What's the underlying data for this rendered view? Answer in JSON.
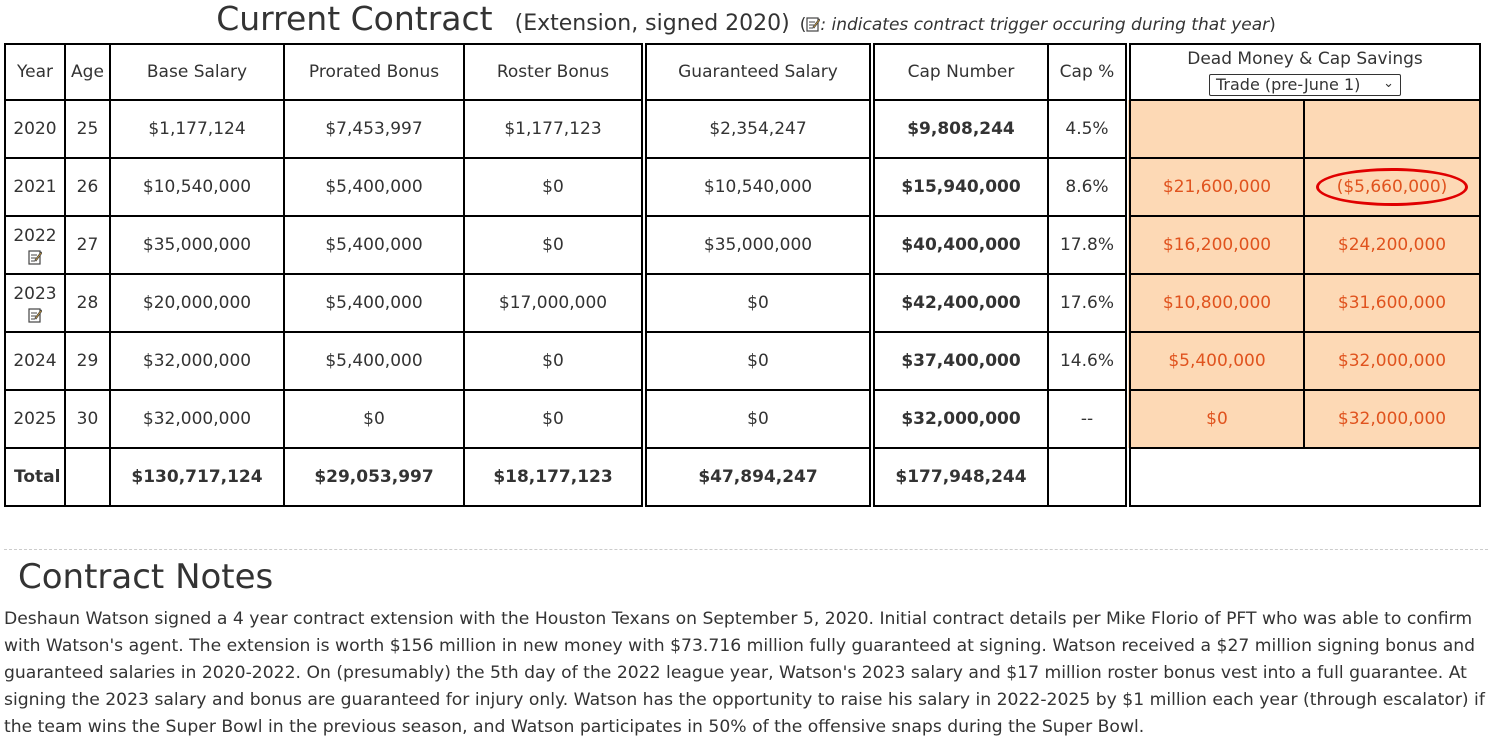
{
  "header": {
    "title": "Current Contract",
    "subtitle": "(Extension, signed 2020)",
    "note_open": "(",
    "note_text": ": indicates contract trigger occuring during that year",
    "note_close": ")"
  },
  "table": {
    "columns": [
      "Year",
      "Age",
      "Base Salary",
      "Prorated Bonus",
      "Roster Bonus",
      "Guaranteed Salary",
      "Cap Number",
      "Cap %"
    ],
    "dead_money_header": "Dead Money & Cap Savings",
    "dead_money_select": "Trade (pre-June 1)",
    "rows": [
      {
        "year": "2020",
        "trigger": false,
        "age": "25",
        "base": "$1,177,124",
        "prorated": "$7,453,997",
        "roster": "$1,177,123",
        "guaranteed": "$2,354,247",
        "cap": "$9,808,244",
        "cap_pct": "4.5%",
        "dead": "",
        "savings": ""
      },
      {
        "year": "2021",
        "trigger": false,
        "age": "26",
        "base": "$10,540,000",
        "prorated": "$5,400,000",
        "roster": "$0",
        "guaranteed": "$10,540,000",
        "cap": "$15,940,000",
        "cap_pct": "8.6%",
        "dead": "$21,600,000",
        "savings": "($5,660,000)"
      },
      {
        "year": "2022",
        "trigger": true,
        "age": "27",
        "base": "$35,000,000",
        "prorated": "$5,400,000",
        "roster": "$0",
        "guaranteed": "$35,000,000",
        "cap": "$40,400,000",
        "cap_pct": "17.8%",
        "dead": "$16,200,000",
        "savings": "$24,200,000"
      },
      {
        "year": "2023",
        "trigger": true,
        "age": "28",
        "base": "$20,000,000",
        "prorated": "$5,400,000",
        "roster": "$17,000,000",
        "guaranteed": "$0",
        "cap": "$42,400,000",
        "cap_pct": "17.6%",
        "dead": "$10,800,000",
        "savings": "$31,600,000"
      },
      {
        "year": "2024",
        "trigger": false,
        "age": "29",
        "base": "$32,000,000",
        "prorated": "$5,400,000",
        "roster": "$0",
        "guaranteed": "$0",
        "cap": "$37,400,000",
        "cap_pct": "14.6%",
        "dead": "$5,400,000",
        "savings": "$32,000,000"
      },
      {
        "year": "2025",
        "trigger": false,
        "age": "30",
        "base": "$32,000,000",
        "prorated": "$0",
        "roster": "$0",
        "guaranteed": "$0",
        "cap": "$32,000,000",
        "cap_pct": "--",
        "dead": "$0",
        "savings": "$32,000,000"
      }
    ],
    "total": {
      "label": "Total",
      "base": "$130,717,124",
      "prorated": "$29,053,997",
      "roster": "$18,177,123",
      "guaranteed": "$47,894,247",
      "cap": "$177,948,244"
    }
  },
  "notes": {
    "title": "Contract Notes",
    "body": "Deshaun Watson signed a 4 year contract extension with the Houston Texans on September 5, 2020.  Initial contract details per Mike Florio of PFT who was able to confirm with Watson's agent. The extension is worth $156 million in new money with $73.716 million fully guaranteed at signing.  Watson received  a $27 million signing bonus and guaranteed salaries in 2020-2022.  On (presumably) the 5th day of the 2022 league year, Watson's 2023 salary and $17 million roster bonus vest into a full guarantee.  At signing the 2023 salary and bonus are guaranteed for injury only.  Watson has the opportunity to raise his salary in 2022-2025 by $1 million each year (through escalator) if the team wins the Super Bowl in the previous season, and Watson participates in 50% of the offensive snaps during the Super Bowl."
  },
  "icons": {
    "trigger": "note-edit-icon",
    "select_chevron": "chevron-down-icon"
  },
  "colors": {
    "dead_money_bg": "#fdd9b5",
    "dead_money_text": "#e0531e",
    "highlight_circle": "#e00000"
  }
}
